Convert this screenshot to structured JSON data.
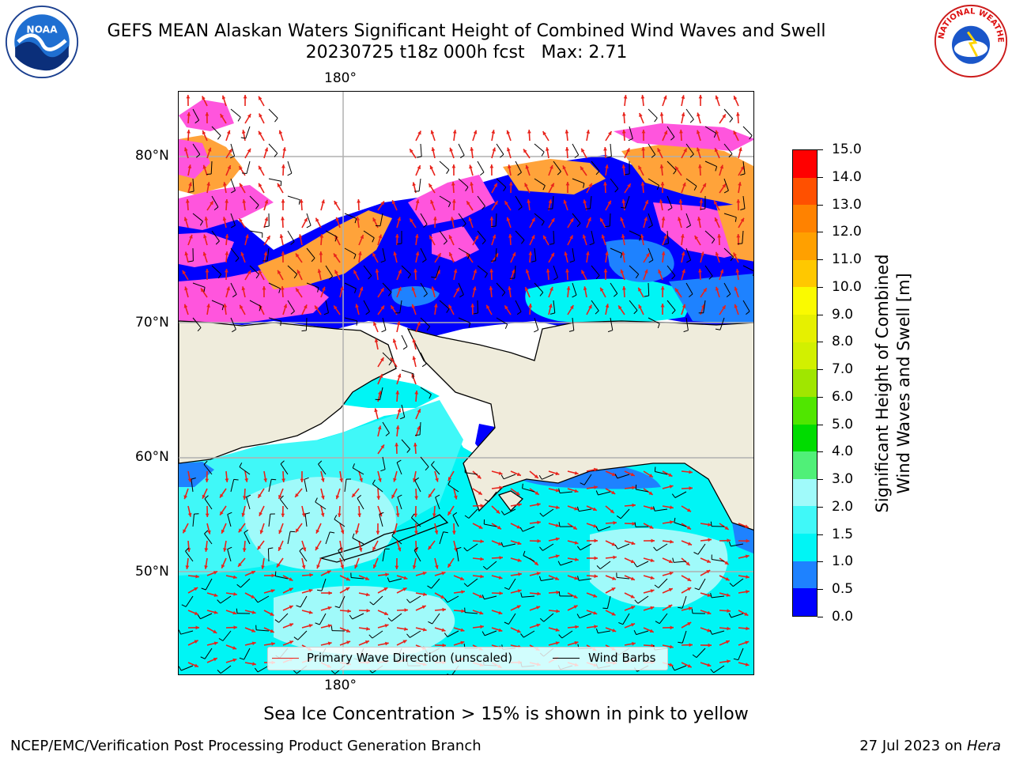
{
  "header": {
    "title_line1": "GEFS MEAN Alaskan Waters Significant Height of Combined Wind Waves and Swell",
    "title_line2": "20230725 t18z 000h fcst   Max: 2.71",
    "left_logo": "NOAA",
    "right_logo": "NATIONAL WEATHER SERVICE"
  },
  "map": {
    "longitude_labels": {
      "top": "180°",
      "bottom": "180°"
    },
    "latitude_labels": [
      "80°N",
      "70°N",
      "60°N",
      "50°N"
    ],
    "land_color": "#efecdc",
    "gridline_color": "#b0b0b0"
  },
  "legend": {
    "wave_direction_label": "Primary Wave Direction (unscaled)",
    "wave_direction_color": "#e8231b",
    "wind_barbs_label": "Wind Barbs",
    "wind_barbs_color": "#000000"
  },
  "colorbar": {
    "title_line1": "Significant Height of Combined",
    "title_line2": "Wind Waves and Swell [m]",
    "tick_labels": [
      "0.0",
      "0.5",
      "1.0",
      "1.5",
      "2.0",
      "3.0",
      "4.0",
      "5.0",
      "6.0",
      "7.0",
      "8.0",
      "9.0",
      "10.0",
      "11.0",
      "12.0",
      "13.0",
      "14.0",
      "15.0"
    ],
    "colors": [
      "#0000ff",
      "#1e82ff",
      "#00f5f5",
      "#40f8f8",
      "#a0fafa",
      "#50f078",
      "#00dc00",
      "#50e600",
      "#a0e600",
      "#d2f000",
      "#e6f000",
      "#fafa00",
      "#ffc800",
      "#ffa000",
      "#ff8200",
      "#ff5000",
      "#ff0000"
    ]
  },
  "notes": {
    "sea_ice": "Sea Ice Concentration > 15% is shown in pink to yellow"
  },
  "footer": {
    "producer": "NCEP/EMC/Verification Post Processing Product Generation Branch",
    "date": "27 Jul 2023 on ",
    "machine": "Hera"
  }
}
